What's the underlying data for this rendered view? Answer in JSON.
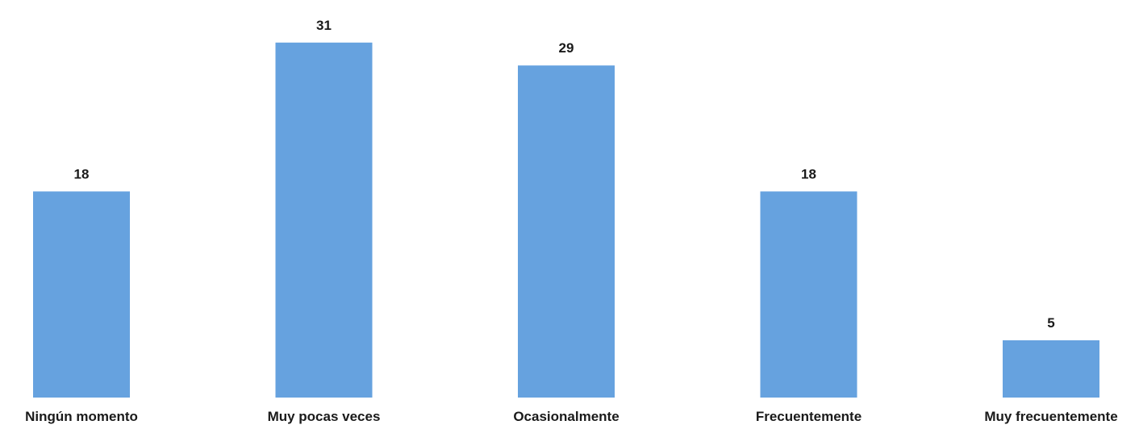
{
  "chart_data": {
    "type": "bar",
    "categories": [
      "Ningún momento",
      "Muy pocas veces",
      "Ocasionalmente",
      "Frecuentemente",
      "Muy frecuentemente"
    ],
    "values": [
      18,
      31,
      29,
      18,
      5
    ],
    "value_labels": [
      "18",
      "31",
      "29",
      "18",
      "5"
    ],
    "title": "",
    "xlabel": "",
    "ylabel": "",
    "ylim": [
      0,
      35
    ],
    "grid": false,
    "legend": "none",
    "bar_color": "#66a2df"
  }
}
